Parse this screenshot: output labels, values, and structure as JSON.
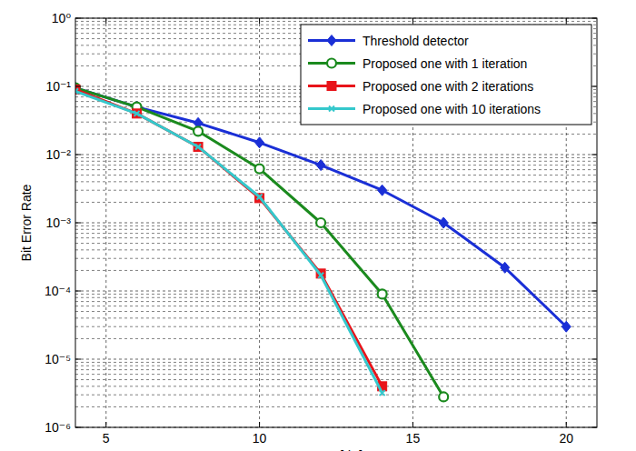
{
  "chart_data": {
    "type": "line",
    "x_label": "SNR [dB]",
    "y_label": "Bit Error Rate",
    "log": "y",
    "grid": true,
    "legend": "northeast",
    "xlim": [
      4,
      21
    ],
    "ylim": [
      1e-06,
      1
    ],
    "xticks": [
      5,
      10,
      15,
      20
    ],
    "yticks": [
      {
        "value": 1e-06,
        "label": "10⁻⁶"
      },
      {
        "value": 1e-05,
        "label": "10⁻⁵"
      },
      {
        "value": 0.0001,
        "label": "10⁻⁴"
      },
      {
        "value": 0.001,
        "label": "10⁻³"
      },
      {
        "value": 0.01,
        "label": "10⁻²"
      },
      {
        "value": 0.1,
        "label": "10⁻¹"
      },
      {
        "value": 1,
        "label": "10⁰"
      }
    ],
    "x": [
      4,
      6,
      8,
      10,
      12,
      14,
      16,
      18,
      20
    ],
    "series": [
      {
        "name": "Threshold detector",
        "color": "#1a2fd6",
        "marker": "diamond",
        "line_style": "solid",
        "values": [
          0.095,
          0.05,
          0.029,
          0.015,
          0.007,
          0.003,
          0.001,
          0.00022,
          3e-05
        ]
      },
      {
        "name": "Proposed one with 1 iteration",
        "color": "#1b8a1e",
        "marker": "circle",
        "line_style": "solid",
        "values": [
          0.095,
          0.05,
          0.022,
          0.0062,
          0.001,
          9e-05,
          2.8e-06,
          null,
          null
        ]
      },
      {
        "name": "Proposed one with 2 iterations",
        "color": "#e8141a",
        "marker": "square",
        "line_style": "solid",
        "values": [
          0.09,
          0.04,
          0.013,
          0.0023,
          0.00018,
          4e-06,
          null,
          null,
          null
        ]
      },
      {
        "name": "Proposed one with 10 iterations",
        "color": "#35c8cc",
        "marker": "x",
        "line_style": "solid",
        "values": [
          0.085,
          0.04,
          0.013,
          0.0024,
          0.00017,
          3.2e-06,
          null,
          null,
          null
        ]
      }
    ]
  }
}
